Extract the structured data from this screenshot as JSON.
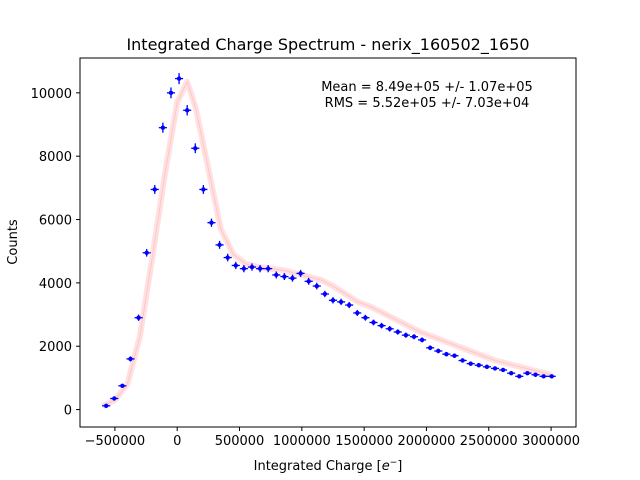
{
  "chart_data": {
    "type": "scatter",
    "title": "Integrated Charge Spectrum - nerix_160502_1650",
    "xlabel_main": "Integrated Charge [",
    "xlabel_e": "e",
    "xlabel_sup": "−",
    "xlabel_end": "]",
    "ylabel": "Counts",
    "xlim": [
      -780000,
      3200000
    ],
    "ylim": [
      -550,
      11100
    ],
    "xticks": [
      -500000,
      0,
      500000,
      1000000,
      1500000,
      2000000,
      2500000,
      3000000
    ],
    "xtick_labels": [
      "−500000",
      "0",
      "500000",
      "1000000",
      "1500000",
      "2000000",
      "2500000",
      "3000000"
    ],
    "yticks": [
      0,
      2000,
      4000,
      6000,
      8000,
      10000
    ],
    "ytick_labels": [
      "0",
      "2000",
      "4000",
      "6000",
      "8000",
      "10000"
    ],
    "annotations": [
      "Mean = 8.49e+05 +/- 1.07e+05",
      "RMS = 5.52e+05 +/- 7.03e+04"
    ],
    "grid": false,
    "series": [
      {
        "style": "errorbar-points",
        "color": "#0000ff",
        "x": [
          -570000,
          -505000,
          -440000,
          -375000,
          -310000,
          -245000,
          -180000,
          -115000,
          -50000,
          15000,
          80000,
          145000,
          210000,
          275000,
          340000,
          405000,
          470000,
          535000,
          600000,
          665000,
          730000,
          795000,
          860000,
          925000,
          990000,
          1055000,
          1120000,
          1185000,
          1250000,
          1315000,
          1380000,
          1445000,
          1510000,
          1575000,
          1640000,
          1705000,
          1770000,
          1835000,
          1900000,
          1965000,
          2030000,
          2095000,
          2160000,
          2225000,
          2290000,
          2355000,
          2420000,
          2485000,
          2550000,
          2615000,
          2680000,
          2745000,
          2810000,
          2875000,
          2940000,
          3005000
        ],
        "y": [
          120,
          350,
          750,
          1600,
          2900,
          4950,
          6950,
          8900,
          10000,
          10450,
          9450,
          8250,
          6950,
          5900,
          5200,
          4800,
          4550,
          4450,
          4500,
          4450,
          4450,
          4250,
          4200,
          4150,
          4300,
          4050,
          3900,
          3650,
          3450,
          3400,
          3300,
          3050,
          2900,
          2750,
          2650,
          2550,
          2450,
          2350,
          2300,
          2200,
          1950,
          1850,
          1750,
          1700,
          1550,
          1450,
          1400,
          1350,
          1300,
          1250,
          1150,
          1050,
          1150,
          1100,
          1050,
          1050
        ],
        "yerr": [
          30,
          45,
          60,
          80,
          100,
          120,
          140,
          160,
          170,
          175,
          165,
          155,
          140,
          130,
          125,
          120,
          115,
          115,
          115,
          115,
          115,
          110,
          110,
          110,
          110,
          110,
          105,
          100,
          100,
          100,
          98,
          95,
          92,
          90,
          88,
          86,
          84,
          82,
          80,
          78,
          75,
          72,
          70,
          70,
          68,
          66,
          65,
          64,
          63,
          62,
          60,
          58,
          60,
          59,
          58,
          58
        ]
      },
      {
        "style": "fit-band",
        "color": "#ffaaaa",
        "x": [
          -600000,
          -500000,
          -400000,
          -300000,
          -200000,
          -100000,
          0,
          80000,
          150000,
          250000,
          350000,
          450000,
          550000,
          650000,
          750000,
          850000,
          950000,
          1050000,
          1150000,
          1250000,
          1350000,
          1450000,
          1550000,
          1650000,
          1750000,
          1850000,
          1950000,
          2050000,
          2150000,
          2250000,
          2350000,
          2450000,
          2550000,
          2650000,
          2750000,
          2850000,
          2950000,
          3000000
        ],
        "y": [
          100,
          300,
          800,
          2300,
          4800,
          7400,
          9700,
          10350,
          9500,
          7600,
          5700,
          4900,
          4600,
          4500,
          4450,
          4400,
          4300,
          4200,
          4100,
          3900,
          3650,
          3400,
          3250,
          3050,
          2850,
          2650,
          2450,
          2300,
          2150,
          2000,
          1850,
          1700,
          1550,
          1450,
          1350,
          1250,
          1150,
          1100
        ]
      }
    ]
  }
}
